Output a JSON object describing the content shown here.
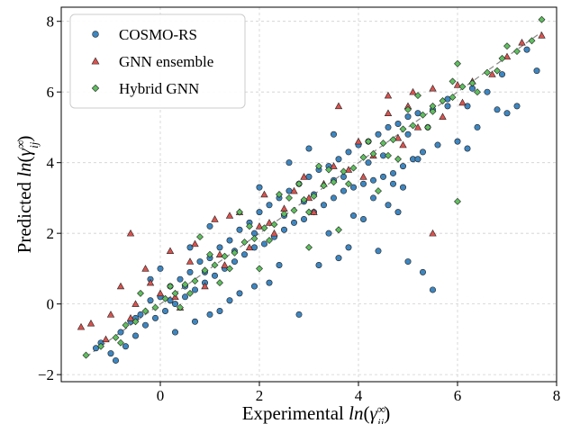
{
  "chart_data": {
    "type": "scatter",
    "xlabel": "Experimental ln(γij∞)",
    "ylabel": "Predicted ln(γij∞)",
    "xlabel_parts": {
      "prefix": "Experimental ",
      "fn": "ln",
      "open": "(",
      "sym": "γ",
      "sub": "ij",
      "sup": "∞",
      "close": ")"
    },
    "ylabel_parts": {
      "prefix": "Predicted ",
      "fn": "ln",
      "open": "(",
      "sym": "γ",
      "sub": "ij",
      "sup": "∞",
      "close": ")"
    },
    "xlim": [
      -2,
      8
    ],
    "ylim": [
      -2.2,
      8.4
    ],
    "xticks": [
      0,
      2,
      4,
      6,
      8
    ],
    "xtick_labels": [
      "0",
      "2",
      "4",
      "6",
      "8"
    ],
    "yticks": [
      -2,
      0,
      2,
      4,
      6,
      8
    ],
    "ytick_labels": [
      "−2",
      "0",
      "2",
      "4",
      "6",
      "8"
    ],
    "grid": true,
    "legend_position": "top-left",
    "parity_line": {
      "from": [
        -1.5,
        -1.5
      ],
      "to": [
        7.7,
        7.7
      ],
      "color": "#888888",
      "style": "dashed"
    },
    "series": [
      {
        "name": "COSMO-RS",
        "marker": "circle",
        "color": "#3e86c0",
        "points": [
          [
            -1.3,
            -1.25
          ],
          [
            -1.2,
            -1.1
          ],
          [
            -1.0,
            -1.4
          ],
          [
            -0.9,
            -1.6
          ],
          [
            -0.8,
            -0.8
          ],
          [
            -0.7,
            -1.2
          ],
          [
            -0.6,
            -0.5
          ],
          [
            -0.5,
            -0.9
          ],
          [
            -0.4,
            -0.3
          ],
          [
            -0.3,
            -0.6
          ],
          [
            -0.2,
            0.1
          ],
          [
            -0.1,
            -0.4
          ],
          [
            0.0,
            0.2
          ],
          [
            0.1,
            -0.2
          ],
          [
            0.2,
            0.5
          ],
          [
            0.3,
            0.0
          ],
          [
            0.4,
            0.7
          ],
          [
            0.5,
            0.2
          ],
          [
            0.6,
            0.9
          ],
          [
            0.7,
            0.4
          ],
          [
            0.8,
            1.2
          ],
          [
            0.9,
            0.6
          ],
          [
            1.0,
            1.3
          ],
          [
            1.1,
            0.8
          ],
          [
            1.2,
            1.6
          ],
          [
            1.3,
            1.0
          ],
          [
            1.4,
            1.8
          ],
          [
            1.5,
            1.2
          ],
          [
            1.6,
            2.1
          ],
          [
            1.7,
            1.4
          ],
          [
            1.8,
            2.3
          ],
          [
            1.9,
            1.6
          ],
          [
            2.0,
            2.6
          ],
          [
            2.1,
            1.7
          ],
          [
            2.2,
            2.8
          ],
          [
            2.3,
            1.9
          ],
          [
            2.4,
            3.0
          ],
          [
            2.5,
            2.1
          ],
          [
            2.6,
            3.2
          ],
          [
            2.7,
            2.3
          ],
          [
            2.8,
            3.4
          ],
          [
            2.9,
            2.4
          ],
          [
            3.0,
            3.6
          ],
          [
            3.1,
            2.6
          ],
          [
            3.2,
            3.8
          ],
          [
            3.3,
            2.8
          ],
          [
            3.4,
            3.9
          ],
          [
            3.5,
            3.0
          ],
          [
            3.6,
            4.1
          ],
          [
            3.7,
            3.2
          ],
          [
            3.8,
            4.3
          ],
          [
            3.9,
            3.3
          ],
          [
            4.0,
            4.5
          ],
          [
            4.1,
            3.4
          ],
          [
            4.2,
            4.6
          ],
          [
            4.3,
            3.5
          ],
          [
            4.4,
            4.8
          ],
          [
            4.5,
            3.6
          ],
          [
            4.6,
            5.0
          ],
          [
            4.7,
            3.7
          ],
          [
            4.8,
            5.1
          ],
          [
            4.9,
            3.9
          ],
          [
            5.0,
            5.3
          ],
          [
            5.1,
            4.1
          ],
          [
            5.2,
            5.4
          ],
          [
            5.3,
            4.3
          ],
          [
            5.5,
            5.5
          ],
          [
            5.6,
            4.5
          ],
          [
            5.8,
            5.8
          ],
          [
            6.0,
            4.6
          ],
          [
            6.2,
            5.6
          ],
          [
            6.4,
            5.0
          ],
          [
            6.6,
            6.0
          ],
          [
            6.8,
            5.5
          ],
          [
            7.0,
            5.4
          ],
          [
            7.2,
            5.6
          ],
          [
            7.6,
            6.6
          ],
          [
            1.2,
            -0.2
          ],
          [
            1.6,
            0.3
          ],
          [
            2.2,
            0.6
          ],
          [
            2.8,
            -0.3
          ],
          [
            3.2,
            1.1
          ],
          [
            3.6,
            1.3
          ],
          [
            3.8,
            1.6
          ],
          [
            4.4,
            1.5
          ],
          [
            5.0,
            1.2
          ],
          [
            5.3,
            0.9
          ],
          [
            5.5,
            0.4
          ],
          [
            4.1,
            2.4
          ],
          [
            4.6,
            2.8
          ],
          [
            4.9,
            3.3
          ],
          [
            4.8,
            2.6
          ],
          [
            5.2,
            4.1
          ],
          [
            6.2,
            4.4
          ],
          [
            2.6,
            4.0
          ],
          [
            3.0,
            4.4
          ],
          [
            3.5,
            4.8
          ],
          [
            2.0,
            3.3
          ],
          [
            1.0,
            2.2
          ],
          [
            0.6,
            1.6
          ],
          [
            0.0,
            1.0
          ],
          [
            -0.2,
            0.7
          ],
          [
            2.4,
            1.1
          ],
          [
            1.9,
            0.5
          ],
          [
            1.4,
            0.1
          ],
          [
            1.0,
            -0.3
          ],
          [
            0.7,
            -0.5
          ],
          [
            0.3,
            -0.8
          ],
          [
            3.4,
            2.0
          ],
          [
            3.9,
            2.5
          ],
          [
            4.3,
            3.0
          ],
          [
            4.7,
            3.4
          ],
          [
            3.1,
            3.1
          ],
          [
            3.7,
            3.6
          ],
          [
            4.5,
            4.2
          ],
          [
            5.4,
            5.0
          ],
          [
            6.9,
            6.5
          ],
          [
            7.4,
            7.2
          ],
          [
            1.5,
            1.5
          ],
          [
            0.5,
            0.5
          ],
          [
            2.5,
            2.5
          ],
          [
            3.5,
            3.5
          ],
          [
            4.2,
            4.0
          ],
          [
            5.0,
            4.8
          ],
          [
            5.8,
            5.6
          ],
          [
            6.3,
            6.1
          ],
          [
            0.9,
            0.9
          ],
          [
            -0.5,
            -0.4
          ],
          [
            1.9,
            2.0
          ],
          [
            2.9,
            2.9
          ],
          [
            0.2,
            0.1
          ]
        ]
      },
      {
        "name": "GNN ensemble",
        "marker": "triangle",
        "color": "#d9534f",
        "points": [
          [
            -1.6,
            -0.65
          ],
          [
            -1.4,
            -0.55
          ],
          [
            -1.1,
            -1.0
          ],
          [
            -0.8,
            0.5
          ],
          [
            -0.6,
            2.0
          ],
          [
            -0.5,
            0.0
          ],
          [
            -0.3,
            1.0
          ],
          [
            0.0,
            0.3
          ],
          [
            0.2,
            1.5
          ],
          [
            0.4,
            -0.1
          ],
          [
            0.7,
            1.7
          ],
          [
            0.9,
            0.5
          ],
          [
            1.1,
            2.4
          ],
          [
            1.3,
            1.1
          ],
          [
            1.6,
            2.6
          ],
          [
            1.8,
            1.6
          ],
          [
            2.0,
            2.2
          ],
          [
            2.2,
            2.3
          ],
          [
            2.5,
            2.7
          ],
          [
            2.7,
            3.2
          ],
          [
            3.0,
            3.0
          ],
          [
            3.3,
            3.4
          ],
          [
            3.5,
            3.9
          ],
          [
            3.8,
            3.8
          ],
          [
            4.0,
            4.6
          ],
          [
            4.3,
            4.2
          ],
          [
            4.6,
            5.4
          ],
          [
            4.8,
            4.7
          ],
          [
            5.0,
            5.6
          ],
          [
            5.2,
            5.0
          ],
          [
            5.5,
            6.1
          ],
          [
            5.7,
            5.3
          ],
          [
            6.0,
            6.2
          ],
          [
            6.3,
            6.3
          ],
          [
            6.7,
            6.5
          ],
          [
            7.0,
            7.0
          ],
          [
            7.3,
            7.4
          ],
          [
            7.7,
            7.6
          ],
          [
            5.5,
            2.0
          ],
          [
            3.6,
            5.6
          ],
          [
            4.6,
            5.9
          ],
          [
            5.1,
            6.0
          ],
          [
            2.1,
            3.1
          ],
          [
            1.4,
            2.5
          ],
          [
            0.6,
            1.2
          ],
          [
            -0.2,
            0.6
          ],
          [
            -1.0,
            -0.3
          ],
          [
            3.1,
            2.6
          ],
          [
            4.1,
            3.6
          ],
          [
            4.9,
            4.5
          ],
          [
            6.1,
            5.7
          ],
          [
            2.9,
            3.6
          ],
          [
            2.3,
            2.0
          ],
          [
            1.2,
            1.4
          ],
          [
            0.3,
            0.2
          ],
          [
            -0.6,
            -0.4
          ]
        ]
      },
      {
        "name": "Hybrid GNN",
        "marker": "diamond",
        "color": "#5fbf5f",
        "points": [
          [
            -1.5,
            -1.45
          ],
          [
            -1.2,
            -1.2
          ],
          [
            -0.9,
            -0.95
          ],
          [
            -0.7,
            -0.6
          ],
          [
            -0.5,
            -0.5
          ],
          [
            -0.3,
            -0.2
          ],
          [
            -0.1,
            -0.1
          ],
          [
            0.1,
            0.15
          ],
          [
            0.3,
            0.3
          ],
          [
            0.5,
            0.55
          ],
          [
            0.7,
            0.65
          ],
          [
            0.9,
            0.95
          ],
          [
            1.1,
            1.1
          ],
          [
            1.3,
            1.35
          ],
          [
            1.5,
            1.45
          ],
          [
            1.7,
            1.75
          ],
          [
            1.9,
            1.85
          ],
          [
            2.1,
            2.15
          ],
          [
            2.3,
            2.25
          ],
          [
            2.5,
            2.55
          ],
          [
            2.7,
            2.65
          ],
          [
            2.9,
            2.95
          ],
          [
            3.1,
            3.05
          ],
          [
            3.3,
            3.35
          ],
          [
            3.5,
            3.45
          ],
          [
            3.7,
            3.75
          ],
          [
            3.9,
            3.85
          ],
          [
            4.1,
            4.15
          ],
          [
            4.3,
            4.25
          ],
          [
            4.5,
            4.55
          ],
          [
            4.7,
            4.65
          ],
          [
            4.9,
            4.95
          ],
          [
            5.1,
            5.05
          ],
          [
            5.3,
            5.35
          ],
          [
            5.5,
            5.45
          ],
          [
            5.7,
            5.75
          ],
          [
            5.9,
            5.85
          ],
          [
            6.1,
            6.15
          ],
          [
            6.3,
            6.25
          ],
          [
            6.6,
            6.55
          ],
          [
            6.9,
            6.95
          ],
          [
            7.2,
            7.15
          ],
          [
            7.5,
            7.45
          ],
          [
            7.7,
            8.05
          ],
          [
            0.2,
            0.5
          ],
          [
            0.6,
            0.3
          ],
          [
            1.0,
            1.4
          ],
          [
            1.4,
            1.0
          ],
          [
            1.8,
            2.2
          ],
          [
            2.2,
            1.8
          ],
          [
            2.6,
            3.0
          ],
          [
            3.0,
            2.6
          ],
          [
            3.4,
            3.8
          ],
          [
            3.8,
            3.4
          ],
          [
            4.2,
            4.6
          ],
          [
            4.6,
            4.2
          ],
          [
            5.0,
            5.5
          ],
          [
            5.4,
            5.0
          ],
          [
            5.9,
            6.3
          ],
          [
            6.4,
            6.0
          ],
          [
            2.0,
            1.0
          ],
          [
            3.0,
            1.6
          ],
          [
            3.6,
            2.1
          ],
          [
            4.4,
            3.2
          ],
          [
            6.0,
            6.8
          ],
          [
            5.5,
            5.6
          ],
          [
            6.0,
            2.9
          ],
          [
            1.6,
            2.6
          ],
          [
            2.4,
            3.1
          ],
          [
            0.8,
            1.9
          ],
          [
            -0.4,
            0.3
          ],
          [
            4.8,
            4.1
          ],
          [
            5.2,
            5.9
          ],
          [
            3.2,
            3.9
          ],
          [
            2.8,
            3.4
          ],
          [
            1.2,
            0.6
          ],
          [
            0.4,
            -0.1
          ],
          [
            -0.8,
            -1.1
          ],
          [
            6.8,
            6.6
          ],
          [
            7.0,
            7.3
          ]
        ]
      }
    ]
  }
}
